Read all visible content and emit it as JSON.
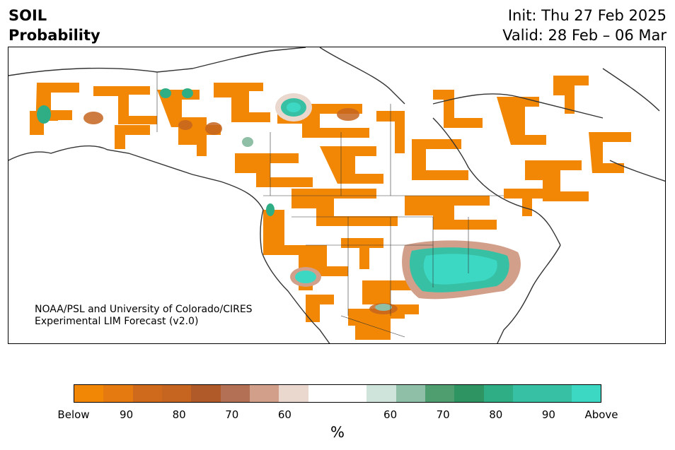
{
  "header": {
    "variable": "SOIL",
    "product": "Probability",
    "init": "Init: Thu 27 Feb 2025",
    "valid": "Valid: 28 Feb – 06 Mar"
  },
  "credit": {
    "line1": "NOAA/PSL and University of Colorado/CIRES",
    "line2": "Experimental LIM Forecast (v2.0)"
  },
  "colorbar": {
    "colors": [
      "#f28705",
      "#e57b10",
      "#cf6a1d",
      "#c5651f",
      "#b05a2a",
      "#b37055",
      "#d2a08a",
      "#ead7ce",
      "#ffffff",
      "#ffffff",
      "#cfe4da",
      "#8fbfa6",
      "#4f9e70",
      "#2e9462",
      "#2fae86",
      "#38c0a4",
      "#38c0a4",
      "#3cd8c4"
    ],
    "ticks": [
      "Below",
      "90",
      "80",
      "70",
      "60",
      "60",
      "70",
      "80",
      "90",
      "Above"
    ],
    "unit": "%"
  },
  "colors": {
    "below": "#f28705",
    "below_mid": "#c5651f",
    "above": "#3cd8c4",
    "above_mid": "#2e9462",
    "coast": "#333333"
  }
}
